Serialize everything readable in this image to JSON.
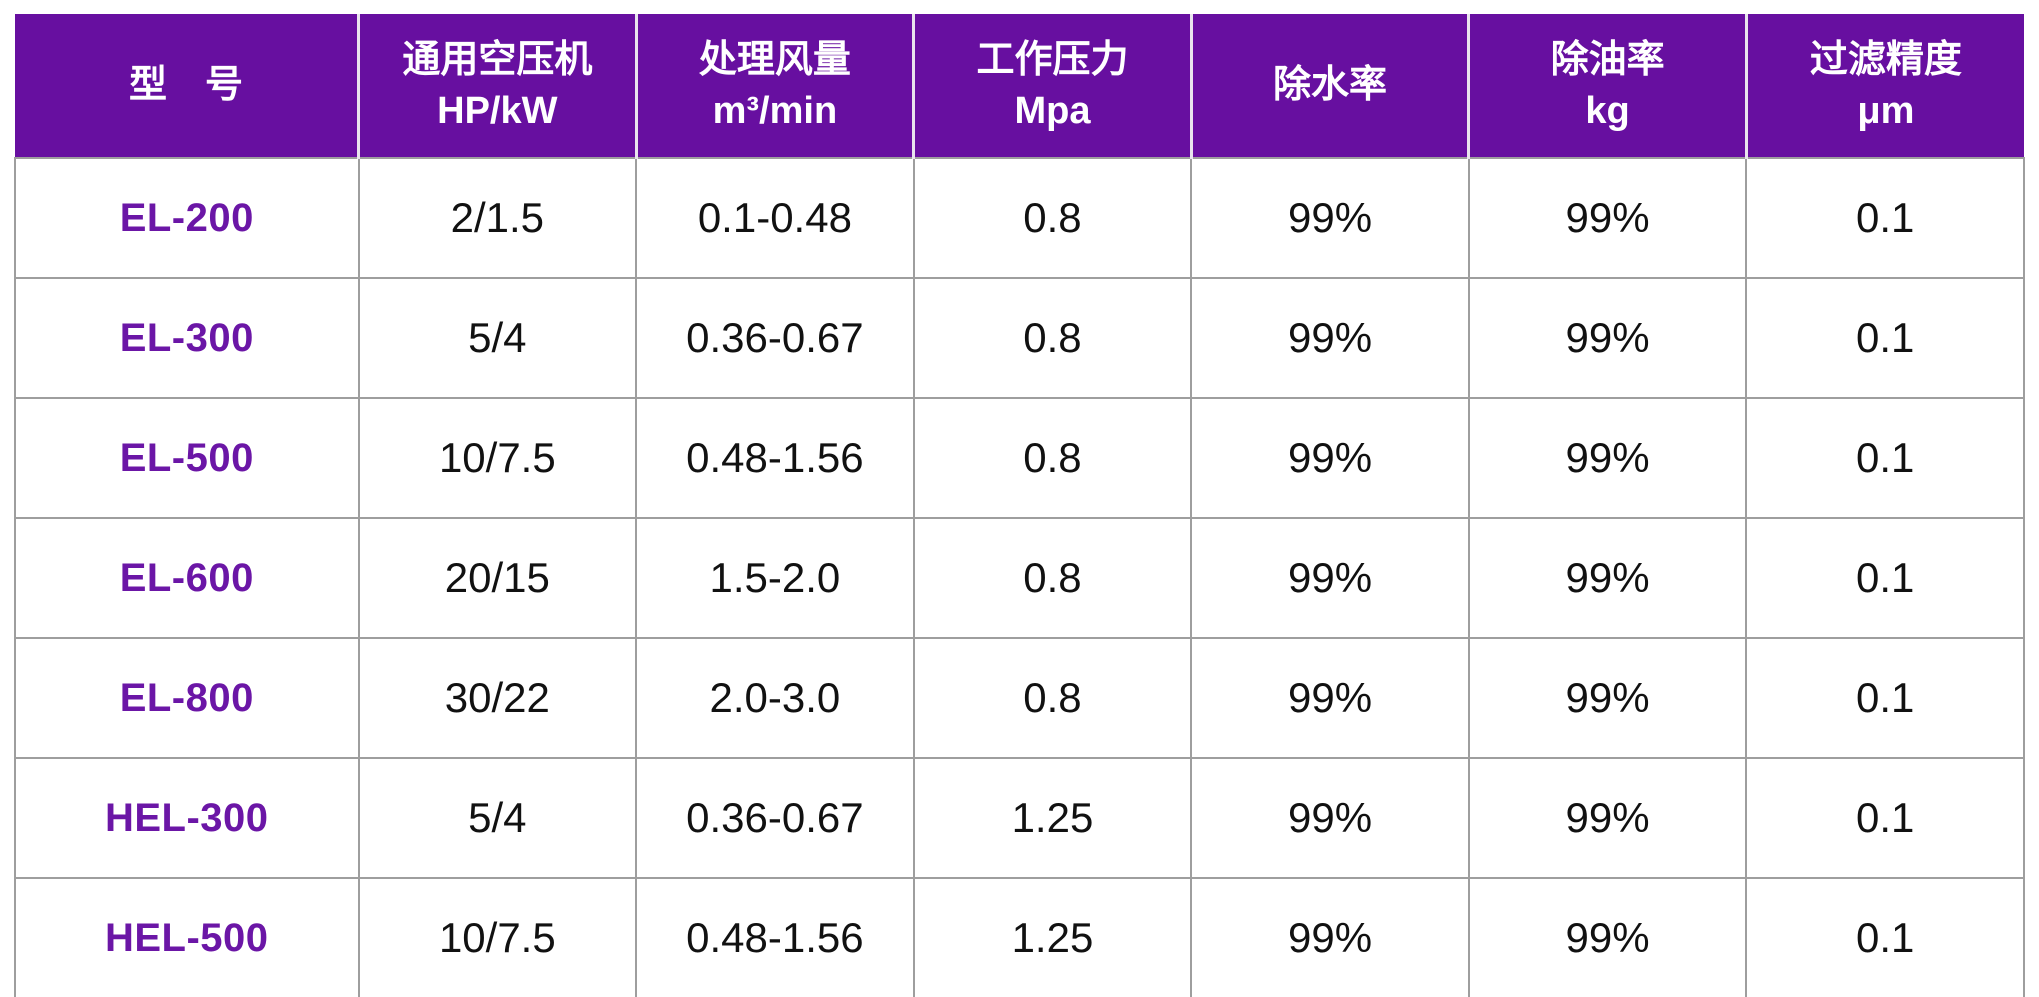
{
  "colors": {
    "header_bg": "#670FA0",
    "header_divider": "#e9e4ee",
    "grid": "#9e9e9e",
    "model_text": "#6B16A6"
  },
  "table": {
    "columns": [
      {
        "key": "model",
        "lines": [
          "型　号",
          ""
        ]
      },
      {
        "key": "hp_kw",
        "lines": [
          "通用空压机",
          "HP/kW"
        ]
      },
      {
        "key": "flow",
        "lines": [
          "处理风量",
          "m³/min"
        ]
      },
      {
        "key": "pressure",
        "lines": [
          "工作压力",
          "Mpa"
        ]
      },
      {
        "key": "water",
        "lines": [
          "除水率",
          ""
        ]
      },
      {
        "key": "oil",
        "lines": [
          "除油率",
          "kg"
        ]
      },
      {
        "key": "filter",
        "lines": [
          "过滤精度",
          "μm"
        ]
      }
    ],
    "rows": [
      {
        "model": "EL-200",
        "hp_kw": "2/1.5",
        "flow": "0.1-0.48",
        "pressure": "0.8",
        "water": "99%",
        "oil": "99%",
        "filter": "0.1"
      },
      {
        "model": "EL-300",
        "hp_kw": "5/4",
        "flow": "0.36-0.67",
        "pressure": "0.8",
        "water": "99%",
        "oil": "99%",
        "filter": "0.1"
      },
      {
        "model": "EL-500",
        "hp_kw": "10/7.5",
        "flow": "0.48-1.56",
        "pressure": "0.8",
        "water": "99%",
        "oil": "99%",
        "filter": "0.1"
      },
      {
        "model": "EL-600",
        "hp_kw": "20/15",
        "flow": "1.5-2.0",
        "pressure": "0.8",
        "water": "99%",
        "oil": "99%",
        "filter": "0.1"
      },
      {
        "model": "EL-800",
        "hp_kw": "30/22",
        "flow": "2.0-3.0",
        "pressure": "0.8",
        "water": "99%",
        "oil": "99%",
        "filter": "0.1"
      },
      {
        "model": "HEL-300",
        "hp_kw": "5/4",
        "flow": "0.36-0.67",
        "pressure": "1.25",
        "water": "99%",
        "oil": "99%",
        "filter": "0.1"
      },
      {
        "model": "HEL-500",
        "hp_kw": "10/7.5",
        "flow": "0.48-1.56",
        "pressure": "1.25",
        "water": "99%",
        "oil": "99%",
        "filter": "0.1"
      }
    ]
  }
}
